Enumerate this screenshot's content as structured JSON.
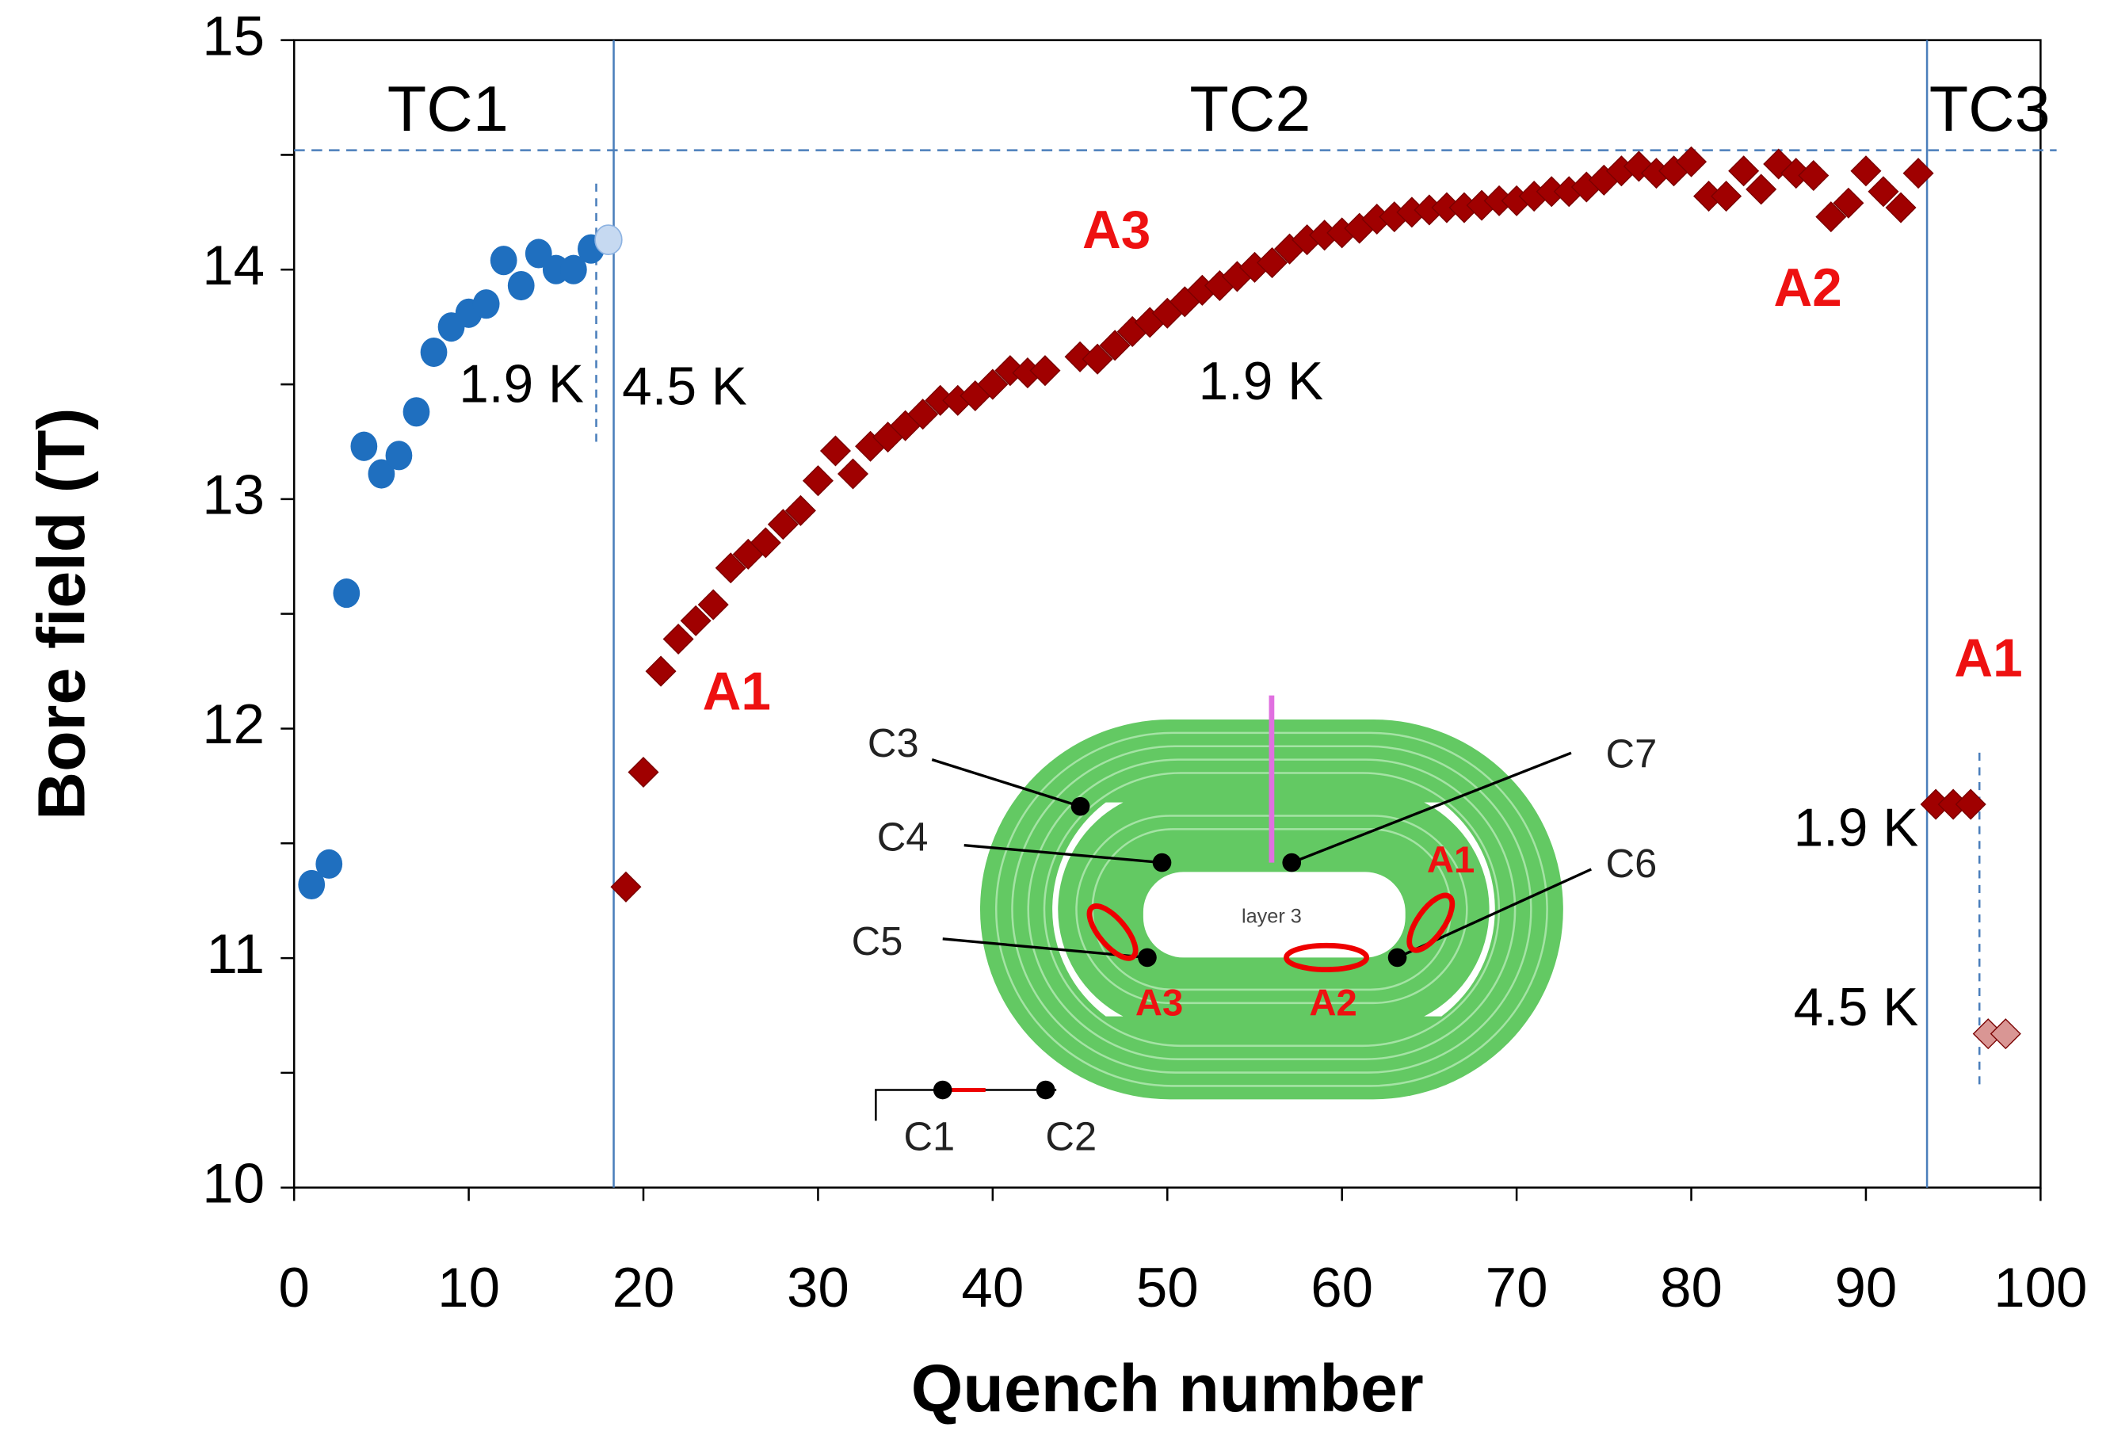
{
  "chart_data": {
    "type": "scatter",
    "xlabel": "Quench number",
    "ylabel": "Bore field (T)",
    "xlim": [
      0,
      100
    ],
    "xticks": [
      0,
      10,
      20,
      30,
      40,
      50,
      60,
      70,
      80,
      90,
      100
    ],
    "ylim": [
      10,
      15
    ],
    "yticks": [
      10,
      11,
      12,
      13,
      14,
      15
    ],
    "grid": false,
    "series": [
      {
        "marker": "circle",
        "color": "#1f6fbf",
        "x": [
          1,
          2,
          3,
          4,
          5,
          6,
          7,
          8,
          9,
          10,
          11,
          12,
          13,
          14,
          15,
          16,
          17
        ],
        "values": [
          11.32,
          11.41,
          12.59,
          13.23,
          13.11,
          13.19,
          13.38,
          13.64,
          13.75,
          13.81,
          13.85,
          14.04,
          13.93,
          14.07,
          14.0,
          14.0,
          14.09
        ]
      },
      {
        "marker": "circle",
        "color": "#c6d9f1",
        "x": [
          18
        ],
        "values": [
          14.13
        ]
      },
      {
        "marker": "diamond",
        "color": "#a00000",
        "x": [
          19,
          20,
          21,
          22,
          23,
          24,
          25,
          26,
          27,
          28,
          29,
          30,
          31,
          32,
          33,
          34,
          35,
          36,
          37,
          38,
          39,
          40,
          41,
          42,
          43,
          45,
          46,
          47,
          48,
          49,
          50,
          51,
          52,
          53,
          54,
          55,
          56,
          57,
          58,
          59,
          60,
          61,
          62,
          63,
          64,
          65,
          66,
          67,
          68,
          69,
          70,
          71,
          72,
          73,
          74,
          75,
          76,
          77,
          78,
          79,
          80,
          81,
          82,
          83,
          84,
          85,
          86,
          87,
          88,
          89,
          90,
          91,
          92,
          93,
          94,
          95,
          96
        ],
        "values": [
          11.31,
          11.81,
          12.25,
          12.39,
          12.47,
          12.54,
          12.7,
          12.76,
          12.81,
          12.89,
          12.95,
          13.08,
          13.21,
          13.11,
          13.23,
          13.27,
          13.32,
          13.37,
          13.43,
          13.43,
          13.45,
          13.5,
          13.56,
          13.55,
          13.56,
          13.62,
          13.61,
          13.67,
          13.73,
          13.77,
          13.81,
          13.86,
          13.91,
          13.93,
          13.97,
          14.01,
          14.03,
          14.09,
          14.13,
          14.15,
          14.16,
          14.18,
          14.22,
          14.23,
          14.25,
          14.26,
          14.27,
          14.27,
          14.28,
          14.3,
          14.3,
          14.32,
          14.34,
          14.34,
          14.36,
          14.39,
          14.43,
          14.45,
          14.42,
          14.43,
          14.47,
          14.32,
          14.32,
          14.43,
          14.35,
          14.46,
          14.42,
          14.41,
          14.23,
          14.29,
          14.43,
          14.34,
          14.27,
          14.42,
          11.67,
          11.67,
          11.67
        ]
      },
      {
        "marker": "diamond",
        "color": "#d99694",
        "x": [
          97,
          98
        ],
        "values": [
          10.67,
          10.67
        ]
      }
    ],
    "reference_lines": {
      "x": [
        18.3,
        93.5
      ],
      "y": 14.52
    },
    "temperature_dividers": [
      {
        "x": 17.3,
        "y": [
          13.25,
          14.38
        ]
      },
      {
        "x": 96.5,
        "y": [
          10.45,
          11.9
        ]
      }
    ],
    "annotations": [
      {
        "text": "TC1",
        "color": "#000000"
      },
      {
        "text": "TC2",
        "color": "#000000"
      },
      {
        "text": "TC3",
        "color": "#000000"
      },
      {
        "text": "1.9 K",
        "color": "#000000"
      },
      {
        "text": "4.5 K",
        "color": "#000000"
      },
      {
        "text": "1.9 K",
        "color": "#000000"
      },
      {
        "text": "A3",
        "color": "#ee1111"
      },
      {
        "text": "A2",
        "color": "#ee1111"
      },
      {
        "text": "A1",
        "color": "#ee1111"
      },
      {
        "text": "A1",
        "color": "#ee1111"
      },
      {
        "text": "1.9 K",
        "color": "#000000"
      },
      {
        "text": "4.5 K",
        "color": "#000000"
      }
    ],
    "inset": {
      "labels": [
        "C3",
        "C4",
        "C5",
        "C7",
        "C6",
        "C1",
        "C2",
        "layer 3",
        "A1",
        "A3",
        "A2"
      ]
    }
  }
}
